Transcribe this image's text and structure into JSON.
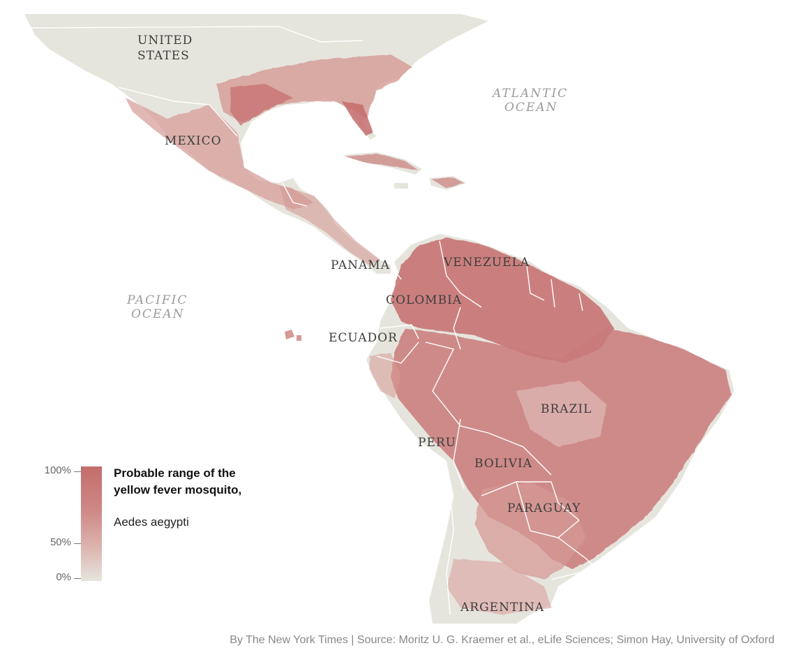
{
  "map": {
    "countries": {
      "united_states": "UNITED STATES",
      "mexico": "MEXICO",
      "panama": "PANAMA",
      "venezuela": "VENEZUELA",
      "colombia": "COLOMBIA",
      "ecuador": "ECUADOR",
      "brazil": "BRAZIL",
      "peru": "PERU",
      "bolivia": "BOLIVIA",
      "paraguay": "PARAGUAY",
      "argentina": "ARGENTINA"
    },
    "oceans": {
      "atlantic": "ATLANTIC OCEAN",
      "pacific": "PACIFIC OCEAN"
    },
    "colors": {
      "land": "#e6e5dd",
      "range_high": "#c46c6c",
      "range_mid": "#d69a96",
      "borders": "#ffffff"
    }
  },
  "legend": {
    "title": "Probable range of the yellow fever mosquito,",
    "subtitle": "Aedes aegypti",
    "ticks": {
      "max": "100%",
      "mid": "50%",
      "min": "0%"
    }
  },
  "credit": "By The New York Times | Source: Moritz U. G. Kraemer et al., eLife Sciences; Simon Hay, University of Oxford"
}
